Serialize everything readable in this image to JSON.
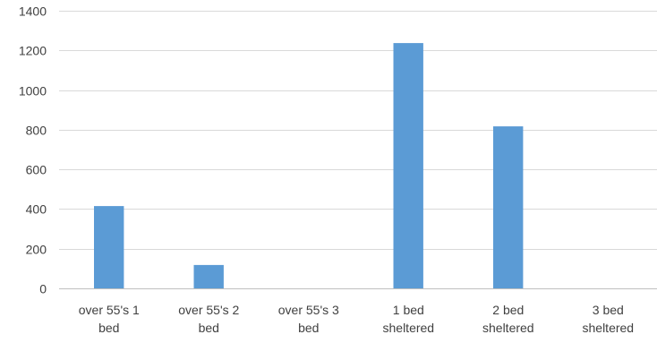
{
  "chart_data": {
    "type": "bar",
    "title": "",
    "xlabel": "",
    "ylabel": "",
    "categories": [
      [
        "over 55's 1",
        "bed"
      ],
      [
        "over 55's 2",
        "bed"
      ],
      [
        "over 55's 3",
        "bed"
      ],
      [
        "1 bed",
        "sheltered"
      ],
      [
        "2 bed",
        "sheltered"
      ],
      [
        "3 bed",
        "sheltered"
      ]
    ],
    "values": [
      415,
      118,
      0,
      1237,
      817,
      0
    ],
    "ylim": [
      0,
      1400
    ],
    "yticks": [
      0,
      200,
      400,
      600,
      800,
      1000,
      1200,
      1400
    ],
    "grid": true,
    "legend": "none",
    "bar_color": "#5b9bd5"
  }
}
